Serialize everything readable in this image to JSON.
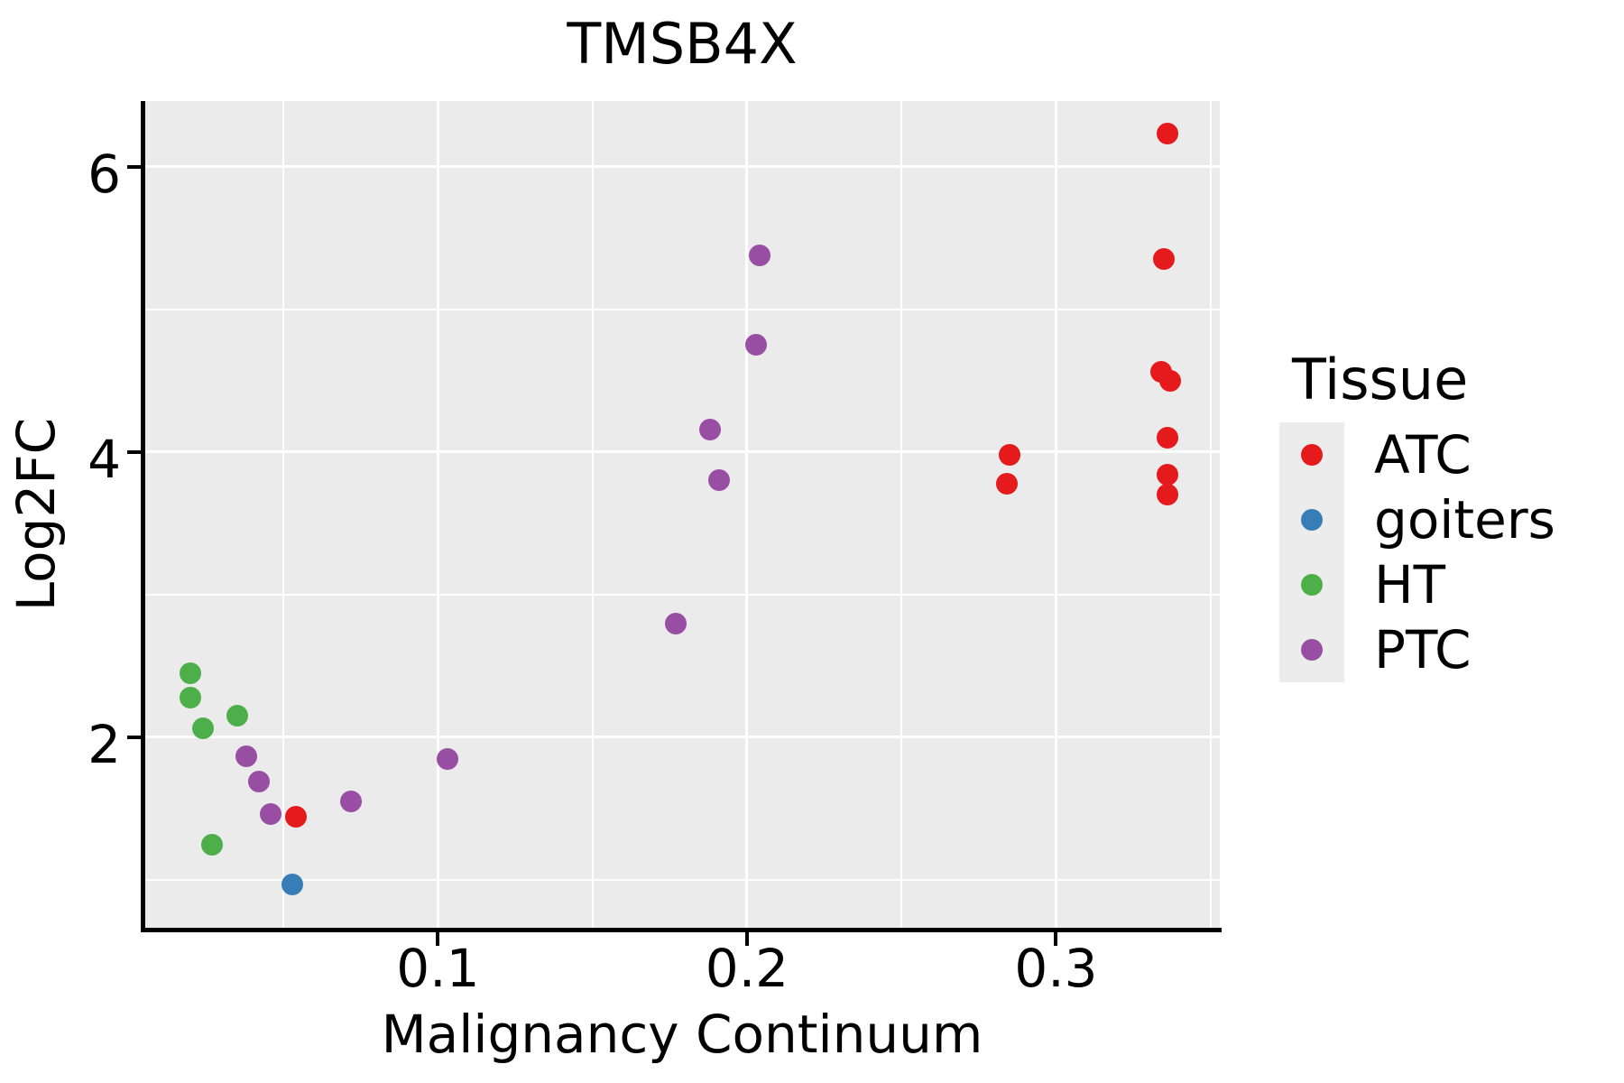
{
  "title": "TMSB4X",
  "legend": {
    "title": "Tissue",
    "entries": [
      {
        "label": "ATC",
        "color": "#E41A1C"
      },
      {
        "label": "goiters",
        "color": "#377EB8"
      },
      {
        "label": "HT",
        "color": "#4DAF4A"
      },
      {
        "label": "PTC",
        "color": "#984EA3"
      }
    ]
  },
  "colors": {
    "panel_background": "#EBEBEB",
    "gridline": "#FFFFFF",
    "axis_line": "#000000",
    "text": "#000000"
  },
  "chart_data": {
    "type": "scatter",
    "title": "TMSB4X",
    "xlabel": "Malignancy Continuum",
    "ylabel": "Log2FC",
    "xlim": [
      0.005,
      0.353
    ],
    "ylim": [
      0.665,
      6.46
    ],
    "grid": true,
    "legend_position": "right",
    "x_ticks": [
      {
        "v": 0.1,
        "label": "0.1"
      },
      {
        "v": 0.2,
        "label": "0.2"
      },
      {
        "v": 0.3,
        "label": "0.3"
      }
    ],
    "y_ticks": [
      {
        "v": 2,
        "label": "2"
      },
      {
        "v": 4,
        "label": "4"
      },
      {
        "v": 6,
        "label": "6"
      }
    ],
    "x_minor_gridlines": [
      0.05,
      0.15,
      0.25,
      0.35
    ],
    "y_minor_gridlines": [
      1,
      3,
      5
    ],
    "series": [
      {
        "name": "ATC",
        "color": "#E41A1C",
        "points": [
          [
            0.336,
            6.23
          ],
          [
            0.335,
            5.35
          ],
          [
            0.334,
            4.56
          ],
          [
            0.337,
            4.5
          ],
          [
            0.336,
            4.1
          ],
          [
            0.336,
            3.84
          ],
          [
            0.336,
            3.7
          ],
          [
            0.285,
            3.98
          ],
          [
            0.284,
            3.78
          ],
          [
            0.054,
            1.44
          ]
        ]
      },
      {
        "name": "goiters",
        "color": "#377EB8",
        "points": [
          [
            0.053,
            0.97
          ]
        ]
      },
      {
        "name": "HT",
        "color": "#4DAF4A",
        "points": [
          [
            0.02,
            2.45
          ],
          [
            0.02,
            2.28
          ],
          [
            0.024,
            2.06
          ],
          [
            0.035,
            2.15
          ],
          [
            0.027,
            1.25
          ]
        ]
      },
      {
        "name": "PTC",
        "color": "#984EA3",
        "points": [
          [
            0.204,
            5.38
          ],
          [
            0.203,
            4.75
          ],
          [
            0.188,
            4.16
          ],
          [
            0.191,
            3.8
          ],
          [
            0.177,
            2.8
          ],
          [
            0.103,
            1.85
          ],
          [
            0.038,
            1.87
          ],
          [
            0.042,
            1.69
          ],
          [
            0.046,
            1.46
          ],
          [
            0.072,
            1.55
          ]
        ]
      }
    ]
  }
}
